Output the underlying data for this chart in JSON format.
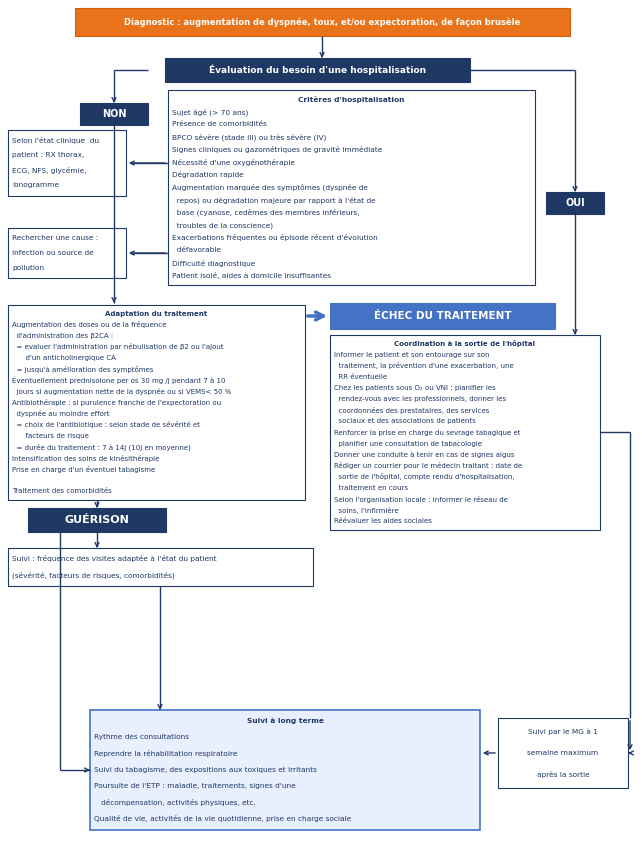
{
  "fig_width": 6.42,
  "fig_height": 8.66,
  "dpi": 100,
  "bg_color": "#ffffff",
  "boxes": [
    {
      "id": "diagnostic",
      "xp": 75,
      "yp": 8,
      "wp": 495,
      "hp": 28,
      "facecolor": "#E8731A",
      "edgecolor": "#CC6010",
      "linewidth": 0.8,
      "lines": [
        "Diagnostic : augmentation de dyspnée, toux, et/ou expectoration, de façon brusèle"
      ],
      "text_color": "#ffffff",
      "fontsize": 6.0,
      "bold": true,
      "align": "center",
      "title_line": -1
    },
    {
      "id": "evaluation",
      "xp": 165,
      "yp": 58,
      "wp": 305,
      "hp": 24,
      "facecolor": "#1F3864",
      "edgecolor": "#1F3864",
      "linewidth": 0.8,
      "lines": [
        "Évaluation du besoin d'une hospitalisation"
      ],
      "text_color": "#ffffff",
      "fontsize": 6.5,
      "bold": true,
      "align": "center",
      "title_line": -1
    },
    {
      "id": "non_box",
      "xp": 80,
      "yp": 103,
      "wp": 68,
      "hp": 22,
      "facecolor": "#1F3864",
      "edgecolor": "#1F3864",
      "linewidth": 0.8,
      "lines": [
        "NON"
      ],
      "text_color": "#ffffff",
      "fontsize": 7.0,
      "bold": true,
      "align": "center",
      "title_line": -1
    },
    {
      "id": "oui_box",
      "xp": 546,
      "yp": 192,
      "wp": 58,
      "hp": 22,
      "facecolor": "#1F3864",
      "edgecolor": "#1F3864",
      "linewidth": 0.8,
      "lines": [
        "OUI"
      ],
      "text_color": "#ffffff",
      "fontsize": 7.0,
      "bold": true,
      "align": "center",
      "title_line": -1
    },
    {
      "id": "criteres",
      "xp": 168,
      "yp": 90,
      "wp": 367,
      "hp": 195,
      "facecolor": "#ffffff",
      "edgecolor": "#1F3864",
      "linewidth": 0.8,
      "lines": [
        "Critères d'hospitalisation",
        "Sujet âgé (> 70 ans)",
        "Présence de comorbidités",
        "BPCO sévère (stade III) ou très sévère (IV)",
        "Signes cliniques ou gazométriques de gravité immédiate",
        "Nécessité d'une oxygénothérapie",
        "Dégradation rapide",
        "Augmentation marquée des symptômes (dyspnée de",
        "  repos) ou dégradation majeure par rapport à l'état de",
        "  base (cyanose, cedèmes des membres inférieurs,",
        "  troubles de la conscience)",
        "Exacerbations fréquentes ou épisode récent d'évolution",
        "  défavorable",
        "Difficulté diagnostique",
        "Patient isolé, aides à domicile insuffisantes"
      ],
      "text_color": "#1F3864",
      "fontsize": 5.3,
      "bold": false,
      "align": "left",
      "title_line": 0
    },
    {
      "id": "selon_etat",
      "xp": 8,
      "yp": 130,
      "wp": 118,
      "hp": 66,
      "facecolor": "#ffffff",
      "edgecolor": "#1F3864",
      "linewidth": 0.8,
      "lines": [
        "Selon l'état clinique  du",
        "patient : RX thorax,",
        "ECG, NFS, glycémie,",
        "ionogramme"
      ],
      "text_color": "#1F3864",
      "fontsize": 5.3,
      "bold": false,
      "align": "left",
      "title_line": -1
    },
    {
      "id": "rechercher",
      "xp": 8,
      "yp": 228,
      "wp": 118,
      "hp": 50,
      "facecolor": "#ffffff",
      "edgecolor": "#1F3864",
      "linewidth": 0.8,
      "lines": [
        "Rechercher une cause :",
        "infection ou source de",
        "pollution"
      ],
      "text_color": "#1F3864",
      "fontsize": 5.3,
      "bold": false,
      "align": "left",
      "title_line": -1
    },
    {
      "id": "adaptation",
      "xp": 8,
      "yp": 305,
      "wp": 297,
      "hp": 195,
      "facecolor": "#ffffff",
      "edgecolor": "#1F3864",
      "linewidth": 0.8,
      "lines": [
        "Adaptation du traitement",
        "Augmentation des doses ou de la fréquence",
        "  d'administration des β2CA :",
        "  = evaluer l'administration par nébulisation de β2 ou l'ajout",
        "      d'un anticholinergique CA",
        "  = jusqu'à amélioration des symptômes",
        "Éventuellement prednisolone per os 30 mg /j pendant 7 à 10",
        "  jours si augmentation nette de la dyspnée ou si VEMS< 50 %",
        "Antibiothérapie : si purulence franche de l'expectoration ou",
        "  dyspnée au moindre effort",
        "  = choix de l'antibiotique : selon stade de sévérité et",
        "      facteurs de risque",
        "  = durée du traitement : 7 à 14j (10j en moyenne)",
        "Intensification des soins de kinésithérapie",
        "Prise en charge d'un éventuel tabagisme",
        "",
        "Traitement des comorbidités"
      ],
      "text_color": "#1F3864",
      "fontsize": 5.0,
      "bold": false,
      "align": "left",
      "title_line": 0
    },
    {
      "id": "echec",
      "xp": 330,
      "yp": 303,
      "wp": 225,
      "hp": 26,
      "facecolor": "#4472C4",
      "edgecolor": "#4472C4",
      "linewidth": 0.8,
      "lines": [
        "ÉCHEC DU TRAITEMENT"
      ],
      "text_color": "#ffffff",
      "fontsize": 7.5,
      "bold": true,
      "align": "center",
      "title_line": -1
    },
    {
      "id": "coordination",
      "xp": 330,
      "yp": 335,
      "wp": 270,
      "hp": 195,
      "facecolor": "#ffffff",
      "edgecolor": "#1F3864",
      "linewidth": 0.8,
      "lines": [
        "Coordination à la sortie de l'hôpital",
        "Informer le patient et son entourage sur son",
        "  traitement, la prévention d'une exacerbation, une",
        "  RR éventuelle",
        "Chez les patients sous O₂ ou VNI : planifier les",
        "  rendez-vous avec les professionnels, donner les",
        "  coordonnées des prestataires, des services",
        "  sociaux et des associations de patients",
        "Renforcer la prise en charge du sevrage tabagique et",
        "  planifier une consultation de tabacologie",
        "Donner une conduite à tenir en cas de signes aigus",
        "Rédiger un courrier pour le médecin traitant : date de",
        "  sortie de l'hôpital, compte rendu d'hospitalisation,",
        "  traitement en cours",
        "Selon l'organisation locale : informer le réseau de",
        "  soins, l'infirmière",
        "Réévaluer les aides sociales"
      ],
      "text_color": "#1F3864",
      "fontsize": 5.0,
      "bold": false,
      "align": "left",
      "title_line": 0
    },
    {
      "id": "guerison",
      "xp": 28,
      "yp": 508,
      "wp": 138,
      "hp": 24,
      "facecolor": "#1F3864",
      "edgecolor": "#1F3864",
      "linewidth": 0.8,
      "lines": [
        "GUÉRISON"
      ],
      "text_color": "#ffffff",
      "fontsize": 8.0,
      "bold": true,
      "align": "center",
      "title_line": -1
    },
    {
      "id": "suivi_court",
      "xp": 8,
      "yp": 548,
      "wp": 305,
      "hp": 38,
      "facecolor": "#ffffff",
      "edgecolor": "#1F3864",
      "linewidth": 0.8,
      "lines": [
        "Suivi : fréquence des visites adaptée à l'état du patient",
        "(sévérité, facteurs de risques, comorbidités)"
      ],
      "text_color": "#1F3864",
      "fontsize": 5.3,
      "bold": false,
      "align": "left",
      "title_line": -1
    },
    {
      "id": "suivi_long",
      "xp": 90,
      "yp": 710,
      "wp": 390,
      "hp": 120,
      "facecolor": "#E8F0FF",
      "edgecolor": "#4472C4",
      "linewidth": 1.2,
      "lines": [
        "Suivi à long terme",
        "Rythme des consultations",
        "Reprendre la réhabilitation respiratoire",
        "Suivi du tabagisme, des expositions aux toxiques et irritants",
        "Poursuite de l'ETP : maladie, traitements, signes d'une",
        "   décompensation, activités physiques, etc.",
        "Qualité de vie, activités de la vie quotidienne, prise en charge sociale"
      ],
      "text_color": "#1F3864",
      "fontsize": 5.3,
      "bold": false,
      "align": "left",
      "title_line": 0
    },
    {
      "id": "suivi_mg",
      "xp": 498,
      "yp": 718,
      "wp": 130,
      "hp": 70,
      "facecolor": "#ffffff",
      "edgecolor": "#1F3864",
      "linewidth": 0.8,
      "lines": [
        "Suivi par le MG à 1",
        "semaine maximum",
        "après la sortie"
      ],
      "text_color": "#1F3864",
      "fontsize": 5.3,
      "bold": false,
      "align": "center",
      "title_line": -1
    }
  ]
}
